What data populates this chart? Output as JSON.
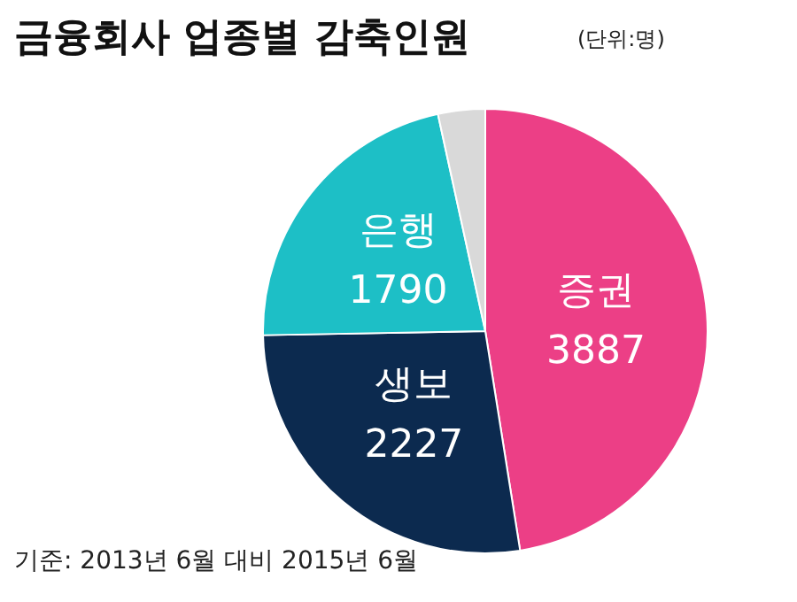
{
  "chart_data": {
    "type": "pie",
    "title": "금융회사 업종별 감축인원",
    "subtitle": "(단위:명)",
    "categories": [
      "증권",
      "생보",
      "은행",
      null
    ],
    "values": [
      3887,
      2227,
      1790,
      280
    ],
    "value_labels": [
      "3887",
      "2227",
      "1790",
      null
    ],
    "colors": [
      "#ec3f86",
      "#0c2a4f",
      "#1dbfc6",
      "#d9d9d9"
    ],
    "legend": false,
    "annotations": [
      "기준: 2013년 6월 대비 2015년 6월"
    ]
  }
}
